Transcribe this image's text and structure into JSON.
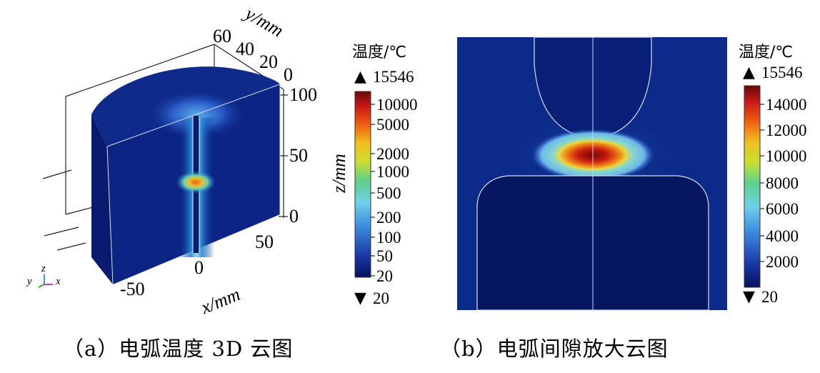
{
  "panel_a": {
    "caption": "（a）电弧温度 3D 云图",
    "y_axis": {
      "label": "y/mm",
      "ticks": [
        "60",
        "40",
        "20",
        "0"
      ]
    },
    "z_axis": {
      "label": "z/mm",
      "ticks": [
        "100",
        "50",
        "0"
      ]
    },
    "x_axis": {
      "label": "x/mm",
      "ticks": [
        "-50",
        "0",
        "50"
      ]
    },
    "triad": {
      "x": "x",
      "y": "y",
      "z": "z"
    }
  },
  "colorbar_a": {
    "title": "温度/℃",
    "max_label": "15546",
    "min_label": "20",
    "ticks": [
      "10000",
      "5000",
      "2000",
      "1000",
      "500",
      "200",
      "100",
      "50",
      "20"
    ],
    "scale": "log"
  },
  "panel_b": {
    "caption": "（b）电弧间隙放大云图"
  },
  "colorbar_b": {
    "title": "温度/℃",
    "max_label": "15546",
    "min_label": "20",
    "ticks": [
      "14000",
      "12000",
      "10000",
      "8000",
      "6000",
      "4000",
      "2000"
    ],
    "scale": "linear"
  },
  "colors": {
    "background_field": "#0a1a78",
    "arc_core": "#8b0a0a",
    "arc_halo": "#7fd0f0"
  }
}
